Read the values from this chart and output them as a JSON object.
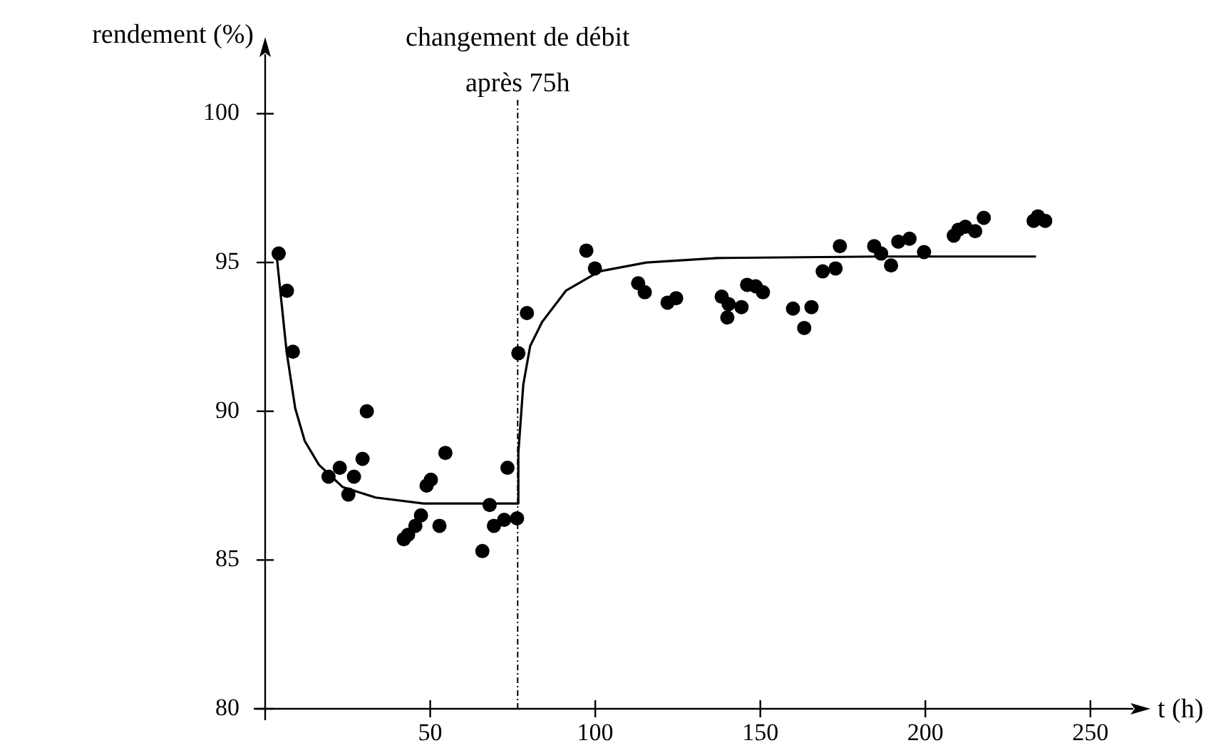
{
  "chart_data": {
    "type": "scatter",
    "xlabel": "t (h)",
    "ylabel": "rendement (%)",
    "xlim": [
      0,
      263
    ],
    "ylim": [
      80,
      102
    ],
    "xticks": [
      50,
      100,
      150,
      200,
      250
    ],
    "yticks": [
      80,
      85,
      90,
      95,
      100
    ],
    "grid": false,
    "legend": false,
    "ref_lines": [
      {
        "axis": "x",
        "value": 76.5,
        "label": "changement de débit après 75h",
        "line_style": "dashed",
        "color": "#000000"
      }
    ],
    "series": [
      {
        "color": "#000000",
        "marker": "circle",
        "x": [
          4.1,
          6.6,
          8.4,
          19.2,
          22.6,
          25.2,
          26.9,
          29.5,
          30.8,
          42.0,
          43.3,
          45.5,
          47.2,
          48.9,
          50.2,
          52.8,
          54.6,
          65.8,
          68.0,
          69.3,
          72.4,
          73.4,
          76.3,
          76.7,
          79.3,
          97.3,
          99.9,
          113.0,
          115.0,
          121.9,
          124.5,
          138.3,
          140.0,
          140.4,
          144.3,
          146.0,
          148.6,
          150.8,
          159.9,
          163.3,
          165.5,
          168.9,
          172.8,
          174.1,
          184.5,
          186.6,
          189.6,
          191.8,
          195.2,
          199.6,
          208.6,
          210.0,
          212.1,
          215.1,
          217.7,
          232.8,
          234.1,
          236.3
        ],
        "values": [
          95.3,
          94.05,
          92.0,
          87.8,
          88.1,
          87.2,
          87.8,
          88.4,
          90.0,
          85.7,
          85.85,
          86.15,
          86.5,
          87.5,
          87.7,
          86.15,
          88.6,
          85.3,
          86.85,
          86.15,
          86.35,
          88.1,
          86.4,
          91.95,
          93.3,
          95.4,
          94.8,
          94.3,
          94.0,
          93.65,
          93.8,
          93.85,
          93.15,
          93.6,
          93.5,
          94.25,
          94.2,
          94.0,
          93.45,
          92.8,
          93.5,
          94.7,
          94.8,
          95.55,
          95.55,
          95.3,
          94.9,
          95.7,
          95.8,
          95.35,
          95.9,
          96.1,
          96.2,
          96.05,
          96.5,
          96.4,
          96.55,
          96.4
        ]
      },
      {
        "type": "line",
        "color": "#000000",
        "marker": "none",
        "line_style": "solid",
        "x": [
          3.6,
          6.5,
          9.1,
          12,
          16.3,
          23.5,
          33.5,
          48,
          76.5,
          76.7,
          78.2,
          80.3,
          83.9,
          91.1,
          101.2,
          115.5,
          137,
          186,
          233.5
        ],
        "values": [
          95.1,
          92.0,
          90.1,
          89.0,
          88.2,
          87.45,
          87.1,
          86.9,
          86.9,
          88.6,
          90.9,
          92.2,
          93.0,
          94.05,
          94.7,
          95.0,
          95.15,
          95.2,
          95.2
        ]
      }
    ]
  }
}
